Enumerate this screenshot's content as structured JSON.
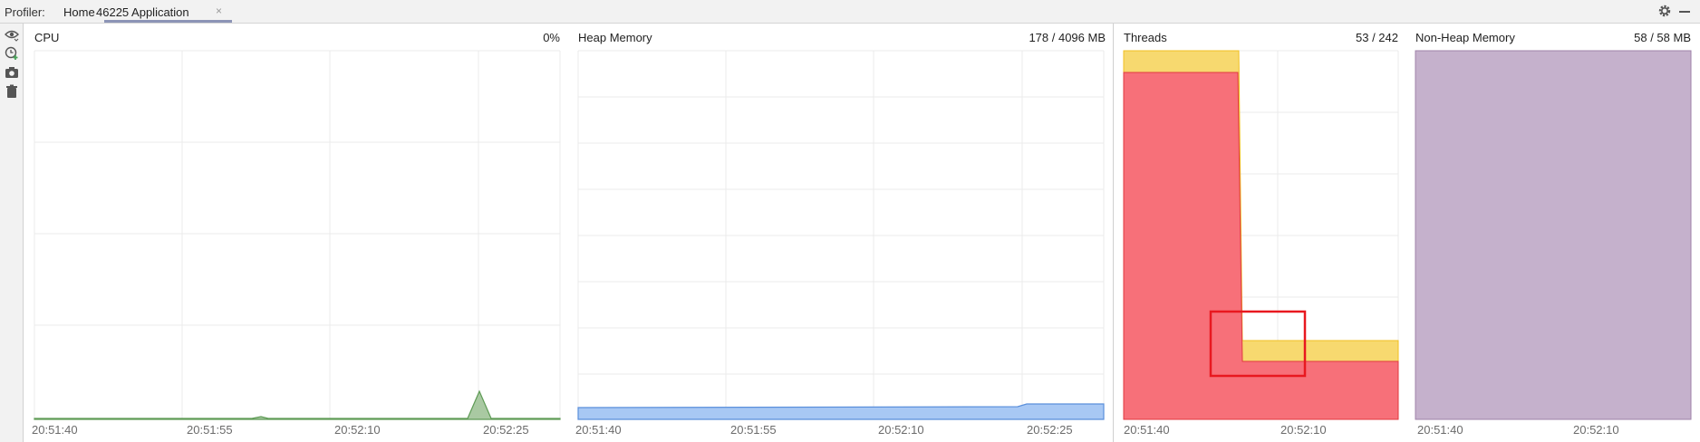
{
  "toolbar": {
    "profiler_label": "Profiler:",
    "tabs": [
      {
        "label": "Home"
      },
      {
        "label": "46225 Application"
      }
    ],
    "close_glyph": "×"
  },
  "sidebar": {
    "icons": [
      "eye-icon",
      "clock-add-icon",
      "camera-icon",
      "trash-icon"
    ]
  },
  "panels": {
    "cpu": {
      "title": "CPU",
      "value": "0%",
      "color": "#5e9b55",
      "ticks": [
        "20:51:40",
        "20:51:55",
        "20:52:10",
        "20:52:25"
      ]
    },
    "heap": {
      "title": "Heap Memory",
      "value": "178 / 4096 MB",
      "color": "#6fa0e8",
      "ticks": [
        "20:51:40",
        "20:51:55",
        "20:52:10",
        "20:52:25"
      ]
    },
    "threads": {
      "title": "Threads",
      "value": "53 / 242",
      "colors": {
        "total": "#f7d96f",
        "active": "#f77079",
        "highlight": "#e8181f"
      },
      "ticks": [
        "20:51:40",
        "20:52:10"
      ]
    },
    "nonheap": {
      "title": "Non-Heap Memory",
      "value": "58 / 58 MB",
      "color": "#c5b1cc",
      "ticks": [
        "20:51:40",
        "20:52:10"
      ]
    }
  }
}
